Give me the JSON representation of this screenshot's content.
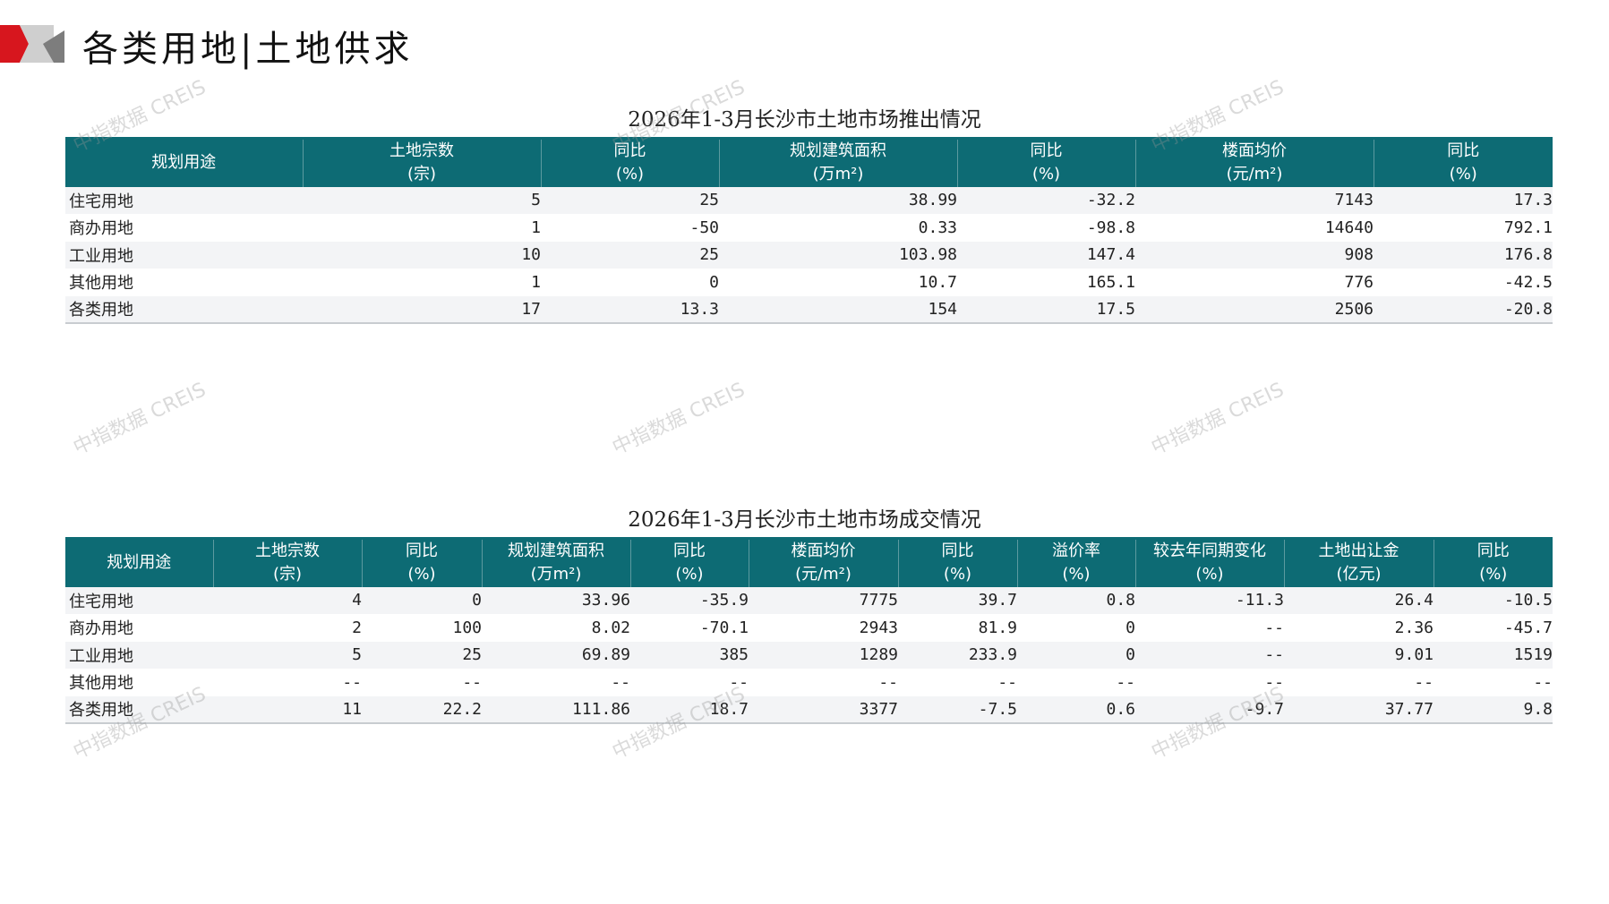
{
  "header": {
    "title": "各类用地|土地供求"
  },
  "watermark": "中指数据 CREIS",
  "colors": {
    "header_bg": "#0d6b74",
    "accent_red": "#d7161e",
    "row_alt": "#f3f4f6"
  },
  "supply": {
    "title": "2026年1-3月长沙市土地市场推出情况",
    "columns": [
      [
        "规划用途",
        ""
      ],
      [
        "土地宗数",
        "(宗)"
      ],
      [
        "同比",
        "(%)"
      ],
      [
        "规划建筑面积",
        "(万m²)"
      ],
      [
        "同比",
        "(%)"
      ],
      [
        "楼面均价",
        "(元/m²)"
      ],
      [
        "同比",
        "(%)"
      ]
    ],
    "rows": [
      [
        "住宅用地",
        "5",
        "25",
        "38.99",
        "-32.2",
        "7143",
        "17.3"
      ],
      [
        "商办用地",
        "1",
        "-50",
        "0.33",
        "-98.8",
        "14640",
        "792.1"
      ],
      [
        "工业用地",
        "10",
        "25",
        "103.98",
        "147.4",
        "908",
        "176.8"
      ],
      [
        "其他用地",
        "1",
        "0",
        "10.7",
        "165.1",
        "776",
        "-42.5"
      ],
      [
        "各类用地",
        "17",
        "13.3",
        "154",
        "17.5",
        "2506",
        "-20.8"
      ]
    ]
  },
  "deal": {
    "title": "2026年1-3月长沙市土地市场成交情况",
    "columns": [
      [
        "规划用途",
        ""
      ],
      [
        "土地宗数",
        "(宗)"
      ],
      [
        "同比",
        "(%)"
      ],
      [
        "规划建筑面积",
        "(万m²)"
      ],
      [
        "同比",
        "(%)"
      ],
      [
        "楼面均价",
        "(元/m²)"
      ],
      [
        "同比",
        "(%)"
      ],
      [
        "溢价率",
        "(%)"
      ],
      [
        "较去年同期变化",
        "(%)"
      ],
      [
        "土地出让金",
        "(亿元)"
      ],
      [
        "同比",
        "(%)"
      ]
    ],
    "rows": [
      [
        "住宅用地",
        "4",
        "0",
        "33.96",
        "-35.9",
        "7775",
        "39.7",
        "0.8",
        "-11.3",
        "26.4",
        "-10.5"
      ],
      [
        "商办用地",
        "2",
        "100",
        "8.02",
        "-70.1",
        "2943",
        "81.9",
        "0",
        "--",
        "2.36",
        "-45.7"
      ],
      [
        "工业用地",
        "5",
        "25",
        "69.89",
        "385",
        "1289",
        "233.9",
        "0",
        "--",
        "9.01",
        "1519"
      ],
      [
        "其他用地",
        "--",
        "--",
        "--",
        "--",
        "--",
        "--",
        "--",
        "--",
        "--",
        "--"
      ],
      [
        "各类用地",
        "11",
        "22.2",
        "111.86",
        "18.7",
        "3377",
        "-7.5",
        "0.6",
        "-9.7",
        "37.77",
        "9.8"
      ]
    ]
  }
}
